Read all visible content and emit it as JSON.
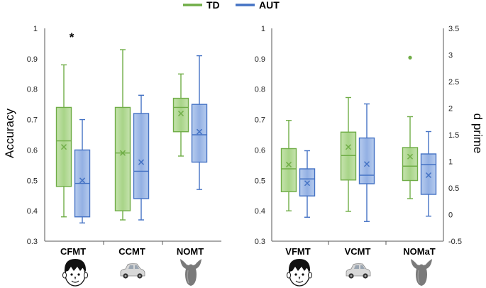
{
  "chart_data": {
    "type": "box",
    "legend": [
      {
        "name": "TD",
        "color": "#70AD47",
        "fill": "#B5DB97"
      },
      {
        "name": "AUT",
        "color": "#4472C4",
        "fill": "#A6BFE8"
      }
    ],
    "left_panel": {
      "ylabel": "Accuracy",
      "ylim": [
        0.3,
        1
      ],
      "yticks": [
        "0.3",
        "0.4",
        "0.5",
        "0.6",
        "0.7",
        "0.8",
        "0.9",
        "1"
      ],
      "categories": [
        {
          "label": "CFMT",
          "icon": "face-icon",
          "significance": "*",
          "TD": {
            "whisker_low": 0.38,
            "q1": 0.48,
            "median": 0.63,
            "q3": 0.74,
            "whisker_high": 0.88,
            "mean": 0.61
          },
          "AUT": {
            "whisker_low": 0.36,
            "q1": 0.38,
            "median": 0.49,
            "q3": 0.6,
            "whisker_high": 0.7,
            "mean": 0.5
          }
        },
        {
          "label": "CCMT",
          "icon": "car-icon",
          "significance": "",
          "TD": {
            "whisker_low": 0.37,
            "q1": 0.4,
            "median": 0.59,
            "q3": 0.74,
            "whisker_high": 0.93,
            "mean": 0.59
          },
          "AUT": {
            "whisker_low": 0.37,
            "q1": 0.44,
            "median": 0.53,
            "q3": 0.72,
            "whisker_high": 0.78,
            "mean": 0.56
          }
        },
        {
          "label": "NOMT",
          "icon": "novel-object-icon",
          "significance": "",
          "TD": {
            "whisker_low": 0.58,
            "q1": 0.66,
            "median": 0.74,
            "q3": 0.77,
            "whisker_high": 0.85,
            "mean": 0.72
          },
          "AUT": {
            "whisker_low": 0.47,
            "q1": 0.56,
            "median": 0.65,
            "q3": 0.75,
            "whisker_high": 0.91,
            "mean": 0.66
          }
        }
      ]
    },
    "right_panel": {
      "ylabel": "d prime",
      "left_axis_ticks": [
        "0.3",
        "0.4",
        "0.5",
        "0.6",
        "0.7",
        "0.8",
        "0.9",
        "1"
      ],
      "ylim": [
        -0.5,
        3.5
      ],
      "yticks": [
        "-0.5",
        "0",
        "0.5",
        "1",
        "1.5",
        "2",
        "2.5",
        "3",
        "3.5"
      ],
      "categories": [
        {
          "label": "VFMT",
          "icon": "face-icon",
          "TD": {
            "whisker_low": 0.07,
            "q1": 0.43,
            "median": 0.86,
            "q3": 1.24,
            "whisker_high": 1.77,
            "mean": 0.94
          },
          "AUT": {
            "whisker_low": -0.05,
            "q1": 0.35,
            "median": 0.67,
            "q3": 0.86,
            "whisker_high": 1.2,
            "mean": 0.59
          }
        },
        {
          "label": "VCMT",
          "icon": "car-icon",
          "TD": {
            "whisker_low": 0.06,
            "q1": 0.65,
            "median": 1.11,
            "q3": 1.55,
            "whisker_high": 2.2,
            "mean": 1.27
          },
          "AUT": {
            "whisker_low": -0.13,
            "q1": 0.58,
            "median": 0.74,
            "q3": 1.44,
            "whisker_high": 2.08,
            "mean": 0.95
          }
        },
        {
          "label": "NOMaT",
          "icon": "novel-object-icon",
          "TD": {
            "whisker_low": 0.3,
            "q1": 0.64,
            "median": 0.91,
            "q3": 1.26,
            "whisker_high": 1.84,
            "mean": 1.09,
            "outliers": [
              2.95
            ]
          },
          "AUT": {
            "whisker_low": -0.03,
            "q1": 0.38,
            "median": 0.94,
            "q3": 1.14,
            "whisker_high": 1.56,
            "mean": 0.74
          }
        }
      ]
    }
  }
}
